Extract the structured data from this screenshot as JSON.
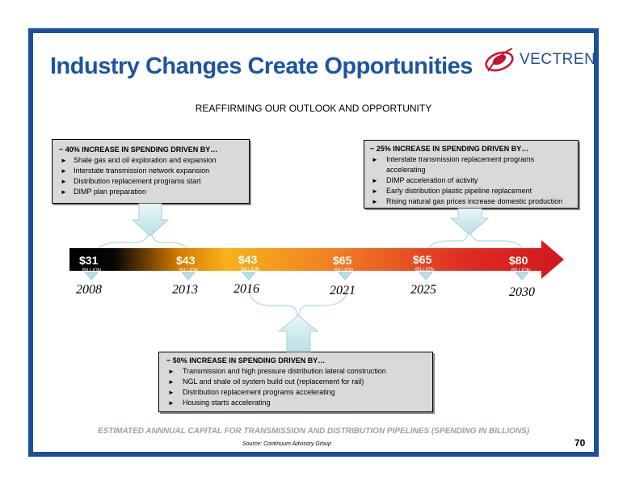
{
  "slide": {
    "title": "Industry Changes Create Opportunities",
    "subtitle": "REAFFIRMING OUR OUTLOOK AND OPPORTUNITY",
    "footer": "ESTIMATED ANNNUAL CAPITAL FOR TRANSMISSION AND DISTRIBUTION PIPELINES (SPENDING IN BILLIONS)",
    "source": "Source: Continuum Advisory Group",
    "page_number": "70"
  },
  "logo": {
    "name": "VECTREN",
    "icon": "vectren-logo-icon",
    "color": "#c8102e"
  },
  "colors": {
    "frame": "#1b4f9c",
    "title": "#1c55a0",
    "box_fill": "#d9d9d9",
    "arrow_end": "#d3161c"
  },
  "boxes": {
    "left": {
      "heading": "~ 40%   INCREASE IN SPENDING DRIVEN BY…",
      "items": [
        "Shale gas and oil exploration and expansion",
        "Interstate transmission network expansion",
        "Distribution replacement programs start",
        "DIMP plan preparation"
      ]
    },
    "right": {
      "heading": "~ 25%   INCREASE IN SPENDING DRIVEN BY…",
      "items": [
        "Interstate transmission replacement programs accelerating",
        "DIMP acceleration of activity",
        "Early distribution plastic pipeline replacement",
        "Rising natural gas prices increase domestic production"
      ]
    },
    "bottom": {
      "heading": "~ 50%   INCREASE IN SPENDING DRIVEN BY…",
      "items": [
        "Transmission and high pressure distribution lateral construction",
        "NGL and shale oil system build out (replacement for rail)",
        "Distribution replacement programs accelerating",
        "Housing starts accelerating"
      ]
    }
  },
  "timeline": {
    "points": [
      {
        "amount": "$31",
        "unit": "BILLION",
        "year": "2008"
      },
      {
        "amount": "$43",
        "unit": "BILLION",
        "year": "2013"
      },
      {
        "amount": "$43",
        "unit": "BILLION",
        "year": "2016"
      },
      {
        "amount": "$65",
        "unit": "BILLION",
        "year": "2021"
      },
      {
        "amount": "$65",
        "unit": "BILLION",
        "year": "2025"
      },
      {
        "amount": "$80",
        "unit": "BILLION",
        "year": "2030"
      }
    ]
  }
}
